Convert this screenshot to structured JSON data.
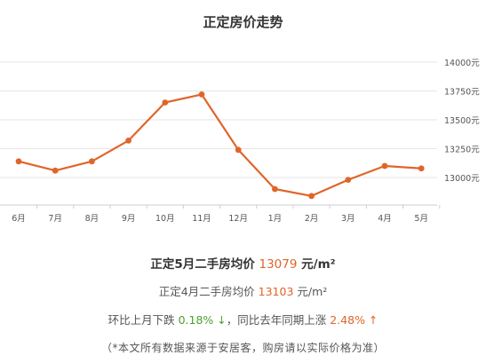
{
  "header": {
    "title": "正定房价走势"
  },
  "chart_data": {
    "type": "line",
    "categories": [
      "6月",
      "7月",
      "8月",
      "9月",
      "10月",
      "11月",
      "12月",
      "1月",
      "2月",
      "3月",
      "4月",
      "5月"
    ],
    "values": [
      13140,
      13060,
      13140,
      13320,
      13650,
      13720,
      13240,
      12900,
      12840,
      12980,
      13100,
      13079
    ],
    "ylim": [
      12800,
      14000
    ],
    "y_ticks": [
      13000,
      13250,
      13500,
      13750,
      14000
    ],
    "y_tick_labels": [
      "13000元",
      "13250元",
      "13500元",
      "13750元",
      "14000元"
    ],
    "grid": true,
    "line_color": "#e0652a"
  },
  "stats": {
    "line1": {
      "prefix": "正定5月二手房均价 ",
      "value": "13079",
      "unit": " 元/m²"
    },
    "line2": {
      "prefix": "正定4月二手房均价 ",
      "value": "13103",
      "unit": " 元/m²"
    },
    "line3": {
      "mom_label": "环比上月下跌 ",
      "mom_value": "0.18% ↓",
      "sep": "，",
      "yoy_label": "同比去年同期上涨 ",
      "yoy_value": "2.48% ↑"
    },
    "note": "（*本文所有数据来源于安居客，购房请以实际价格为准）"
  }
}
